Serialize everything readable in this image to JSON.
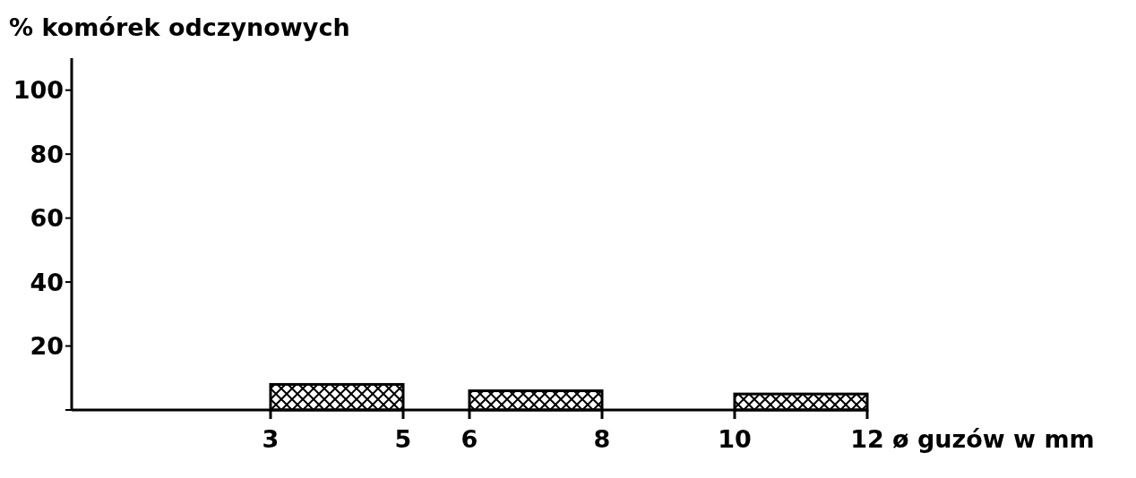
{
  "chart_data": {
    "type": "histogram",
    "ylabel": "% komórek odczynowych",
    "xlabel": "ø guzów w mm",
    "bins": [
      3,
      5,
      6,
      8,
      10,
      12
    ],
    "values": [
      8,
      null,
      6,
      null,
      5
    ],
    "color": "#000000",
    "xlim": [
      0,
      12
    ],
    "xticks": [
      3,
      5,
      6,
      8,
      10,
      12
    ],
    "ylim": [
      0,
      110
    ],
    "yticks": [
      {
        "value": 0,
        "label": null
      },
      20,
      40,
      60,
      80,
      100
    ],
    "grid": false
  }
}
